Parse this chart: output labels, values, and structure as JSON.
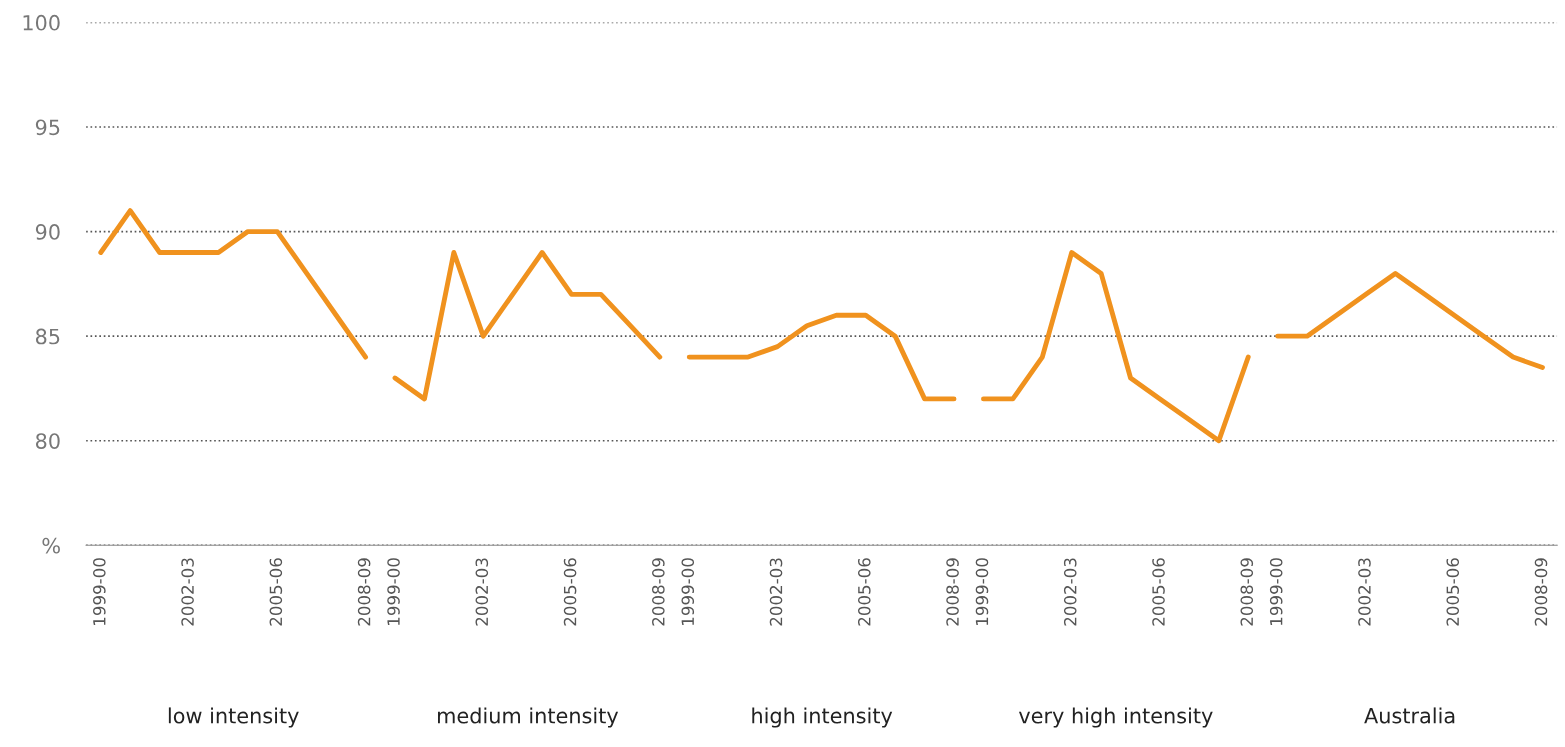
{
  "chart_data": {
    "type": "line",
    "categories": [
      "1999-00",
      null,
      null,
      "2002-03",
      null,
      null,
      "2005-06",
      null,
      null,
      "2008-09",
      "1999-00",
      null,
      null,
      "2002-03",
      null,
      null,
      "2005-06",
      null,
      null,
      "2008-09",
      "1999-00",
      null,
      null,
      "2002-03",
      null,
      null,
      "2005-06",
      null,
      null,
      "2008-09",
      "1999-00",
      null,
      null,
      "2002-03",
      null,
      null,
      "2005-06",
      null,
      null,
      "2008-09",
      "1999-00",
      null,
      null,
      "2002-03",
      null,
      null,
      "2005-06",
      null,
      null,
      "2008-09"
    ],
    "series": [
      {
        "color": "#f0921e",
        "values": [
          89,
          91,
          89,
          89,
          89,
          90,
          90,
          88,
          86,
          84,
          null,
          null,
          null,
          null,
          null,
          null,
          null,
          null,
          null,
          null,
          null,
          null,
          null,
          null,
          null,
          null,
          null,
          null,
          null,
          null,
          null,
          null,
          null,
          null,
          null,
          null,
          null,
          null,
          null,
          null,
          null,
          null,
          null,
          null,
          null,
          null,
          null,
          null,
          null,
          null
        ]
      },
      {
        "color": "#f0921e",
        "values": [
          null,
          null,
          null,
          null,
          null,
          null,
          null,
          null,
          null,
          null,
          83,
          82,
          89,
          85,
          87,
          89,
          87,
          87,
          85.5,
          84,
          null,
          null,
          null,
          null,
          null,
          null,
          null,
          null,
          null,
          null,
          null,
          null,
          null,
          null,
          null,
          null,
          null,
          null,
          null,
          null,
          null,
          null,
          null,
          null,
          null,
          null,
          null,
          null,
          null,
          null
        ]
      },
      {
        "color": "#f0921e",
        "values": [
          null,
          null,
          null,
          null,
          null,
          null,
          null,
          null,
          null,
          null,
          null,
          null,
          null,
          null,
          null,
          null,
          null,
          null,
          null,
          null,
          84,
          84,
          84,
          84.5,
          85.5,
          86,
          86,
          85,
          82,
          82,
          null,
          null,
          null,
          null,
          null,
          null,
          null,
          null,
          null,
          null,
          null,
          null,
          null,
          null,
          null,
          null,
          null,
          null,
          null,
          null
        ]
      },
      {
        "color": "#f0921e",
        "values": [
          null,
          null,
          null,
          null,
          null,
          null,
          null,
          null,
          null,
          null,
          null,
          null,
          null,
          null,
          null,
          null,
          null,
          null,
          null,
          null,
          null,
          null,
          null,
          null,
          null,
          null,
          null,
          null,
          null,
          null,
          82,
          82,
          84,
          89,
          88,
          83,
          82,
          81,
          80,
          84,
          null,
          null,
          null,
          null,
          null,
          null,
          null,
          null,
          null,
          null
        ]
      },
      {
        "color": "#f0921e",
        "values": [
          null,
          null,
          null,
          null,
          null,
          null,
          null,
          null,
          null,
          null,
          null,
          null,
          null,
          null,
          null,
          null,
          null,
          null,
          null,
          null,
          null,
          null,
          null,
          null,
          null,
          null,
          null,
          null,
          null,
          null,
          null,
          null,
          null,
          null,
          null,
          null,
          null,
          null,
          null,
          null,
          85,
          85,
          86,
          87,
          88,
          87,
          86,
          85,
          84,
          83.5
        ]
      }
    ],
    "annotations": [
      "low intensity",
      "medium intensity",
      "high intensity",
      "very high intensity",
      "Australia"
    ],
    "ylim": [
      75,
      100
    ],
    "yticks": [
      {
        "value": 75,
        "label": "%"
      },
      80,
      85,
      90,
      95,
      100
    ],
    "grid": "y",
    "legend": false,
    "line_style": "solid",
    "marker": "none"
  }
}
